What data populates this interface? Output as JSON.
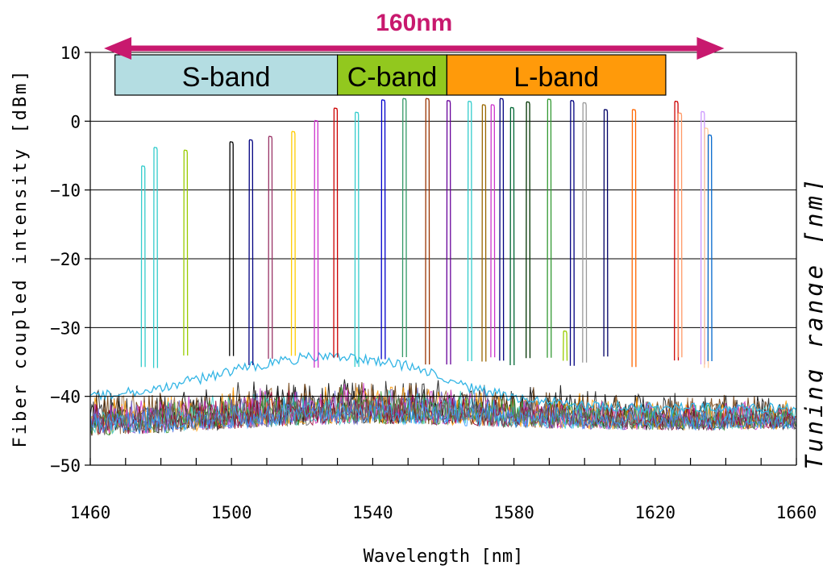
{
  "chart_data": {
    "type": "line",
    "xlabel": "Wavelength [nm]",
    "ylabel": "Fiber coupled intensity [dBm]",
    "right_label": "Tuning range [nm]",
    "xlim": [
      1460,
      1660
    ],
    "ylim": [
      -50,
      10
    ],
    "x_ticks": [
      1460,
      1500,
      1540,
      1580,
      1620,
      1660
    ],
    "y_ticks": [
      -50,
      -40,
      -30,
      -20,
      -10,
      0,
      10
    ],
    "grid": "horizontal",
    "noise_floor_dbm": [
      -46,
      -36
    ],
    "span_annotation": {
      "label": "160nm",
      "from": 1468,
      "to": 1635,
      "color": "#c8196e"
    },
    "bands": [
      {
        "name": "S-band",
        "from": 1467,
        "to": 1530,
        "color": "#b4dde2"
      },
      {
        "name": "C-band",
        "from": 1530,
        "to": 1561,
        "color": "#92c81e"
      },
      {
        "name": "L-band",
        "from": 1561,
        "to": 1623,
        "color": "#ff9a0a"
      }
    ],
    "series": [
      {
        "peak_nm": 1475,
        "peak_dbm": -6.5,
        "color": "#33cccc"
      },
      {
        "peak_nm": 1478.5,
        "peak_dbm": -3.8,
        "color": "#33cccc"
      },
      {
        "peak_nm": 1487,
        "peak_dbm": -4.2,
        "color": "#99cc00"
      },
      {
        "peak_nm": 1500,
        "peak_dbm": -3,
        "color": "#000000"
      },
      {
        "peak_nm": 1505.5,
        "peak_dbm": -2.7,
        "color": "#000080"
      },
      {
        "peak_nm": 1511,
        "peak_dbm": -2.2,
        "color": "#993366"
      },
      {
        "peak_nm": 1517.5,
        "peak_dbm": -1.5,
        "color": "#ffcc00"
      },
      {
        "peak_nm": 1524,
        "peak_dbm": 0.1,
        "color": "#cc33cc"
      },
      {
        "peak_nm": 1529.5,
        "peak_dbm": 1.9,
        "color": "#cc0000"
      },
      {
        "peak_nm": 1535.5,
        "peak_dbm": 1.3,
        "color": "#33cccc"
      },
      {
        "peak_nm": 1543,
        "peak_dbm": 3.1,
        "color": "#0000cc"
      },
      {
        "peak_nm": 1549,
        "peak_dbm": 3.3,
        "color": "#339966"
      },
      {
        "peak_nm": 1555.5,
        "peak_dbm": 3.3,
        "color": "#993300"
      },
      {
        "peak_nm": 1561.5,
        "peak_dbm": 3.0,
        "color": "#660099"
      },
      {
        "peak_nm": 1567.5,
        "peak_dbm": 2.9,
        "color": "#33cccc"
      },
      {
        "peak_nm": 1571.5,
        "peak_dbm": 2.4,
        "color": "#996600"
      },
      {
        "peak_nm": 1574,
        "peak_dbm": 2.4,
        "color": "#cc33cc"
      },
      {
        "peak_nm": 1576.5,
        "peak_dbm": 3.3,
        "color": "#000080"
      },
      {
        "peak_nm": 1579.5,
        "peak_dbm": 2.0,
        "color": "#006633"
      },
      {
        "peak_nm": 1584,
        "peak_dbm": 2.8,
        "color": "#003300"
      },
      {
        "peak_nm": 1590,
        "peak_dbm": 3.2,
        "color": "#339933"
      },
      {
        "peak_nm": 1594.5,
        "peak_dbm": -30.5,
        "color": "#99cc00"
      },
      {
        "peak_nm": 1596.5,
        "peak_dbm": 3.0,
        "color": "#000080"
      },
      {
        "peak_nm": 1600,
        "peak_dbm": 2.7,
        "color": "#999999"
      },
      {
        "peak_nm": 1606,
        "peak_dbm": 1.7,
        "color": "#000066"
      },
      {
        "peak_nm": 1614,
        "peak_dbm": 1.7,
        "color": "#ff6600"
      },
      {
        "peak_nm": 1626,
        "peak_dbm": 2.9,
        "color": "#cc0000"
      },
      {
        "peak_nm": 1627,
        "peak_dbm": 1.2,
        "color": "#ff9966"
      },
      {
        "peak_nm": 1633.5,
        "peak_dbm": 1.4,
        "color": "#cc99ff"
      },
      {
        "peak_nm": 1634.5,
        "peak_dbm": -1.0,
        "color": "#ffcc99"
      },
      {
        "peak_nm": 1635.5,
        "peak_dbm": -2.0,
        "color": "#0066cc"
      }
    ]
  }
}
